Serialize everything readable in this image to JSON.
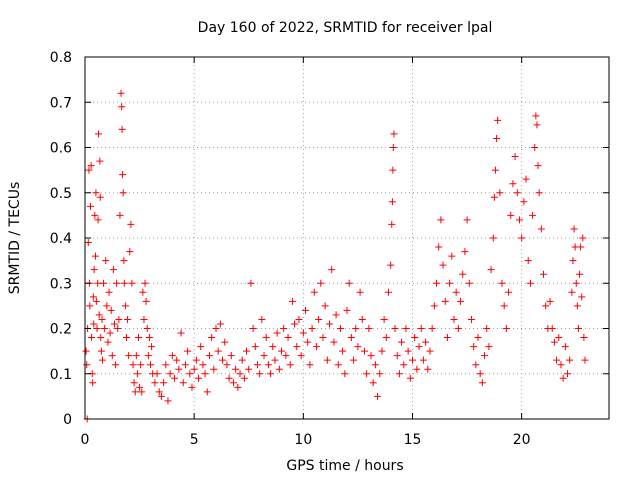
{
  "chart_data": {
    "type": "scatter",
    "title": "Day 160 of 2022, SRMTID for receiver lpal",
    "xlabel": "GPS time / hours",
    "ylabel": "SRMTID / TECUs",
    "xlim": [
      0,
      24
    ],
    "ylim": [
      0,
      0.8
    ],
    "xticks": [
      0,
      5,
      10,
      15,
      20
    ],
    "yticks": [
      0,
      0.1,
      0.2,
      0.3,
      0.4,
      0.5,
      0.6,
      0.7,
      0.8
    ],
    "xtick_labels": [
      "0",
      "5",
      "10",
      "15",
      "20"
    ],
    "ytick_labels": [
      "0",
      "0.1",
      "0.2",
      "0.3",
      "0.4",
      "0.5",
      "0.6",
      "0.7",
      "0.8"
    ],
    "grid": true,
    "marker": "+",
    "color": "#ff0000",
    "series": [
      {
        "name": "SRMTID",
        "points": [
          [
            0.05,
            0.15
          ],
          [
            0.08,
            0.12
          ],
          [
            0.1,
            0.0
          ],
          [
            0.12,
            0.2
          ],
          [
            0.15,
            0.39
          ],
          [
            0.18,
            0.55
          ],
          [
            0.2,
            0.3
          ],
          [
            0.22,
            0.25
          ],
          [
            0.25,
            0.47
          ],
          [
            0.28,
            0.56
          ],
          [
            0.3,
            0.18
          ],
          [
            0.33,
            0.1
          ],
          [
            0.35,
            0.08
          ],
          [
            0.38,
            0.27
          ],
          [
            0.4,
            0.21
          ],
          [
            0.42,
            0.33
          ],
          [
            0.45,
            0.45
          ],
          [
            0.48,
            0.36
          ],
          [
            0.5,
            0.5
          ],
          [
            0.52,
            0.26
          ],
          [
            0.55,
            0.2
          ],
          [
            0.58,
            0.3
          ],
          [
            0.6,
            0.44
          ],
          [
            0.62,
            0.63
          ],
          [
            0.65,
            0.23
          ],
          [
            0.68,
            0.57
          ],
          [
            0.7,
            0.49
          ],
          [
            0.72,
            0.18
          ],
          [
            0.75,
            0.15
          ],
          [
            0.78,
            0.22
          ],
          [
            0.8,
            0.13
          ],
          [
            0.85,
            0.3
          ],
          [
            0.9,
            0.2
          ],
          [
            0.95,
            0.35
          ],
          [
            1.0,
            0.25
          ],
          [
            1.05,
            0.17
          ],
          [
            1.1,
            0.28
          ],
          [
            1.15,
            0.19
          ],
          [
            1.2,
            0.24
          ],
          [
            1.25,
            0.14
          ],
          [
            1.3,
            0.33
          ],
          [
            1.35,
            0.21
          ],
          [
            1.4,
            0.12
          ],
          [
            1.45,
            0.3
          ],
          [
            1.5,
            0.2
          ],
          [
            1.55,
            0.22
          ],
          [
            1.6,
            0.45
          ],
          [
            1.65,
            0.72
          ],
          [
            1.68,
            0.69
          ],
          [
            1.7,
            0.64
          ],
          [
            1.72,
            0.54
          ],
          [
            1.75,
            0.5
          ],
          [
            1.78,
            0.35
          ],
          [
            1.8,
            0.3
          ],
          [
            1.85,
            0.25
          ],
          [
            1.9,
            0.18
          ],
          [
            1.95,
            0.22
          ],
          [
            2.0,
            0.14
          ],
          [
            2.05,
            0.37
          ],
          [
            2.1,
            0.43
          ],
          [
            2.15,
            0.3
          ],
          [
            2.2,
            0.12
          ],
          [
            2.25,
            0.08
          ],
          [
            2.3,
            0.06
          ],
          [
            2.35,
            0.14
          ],
          [
            2.4,
            0.1
          ],
          [
            2.45,
            0.18
          ],
          [
            2.5,
            0.07
          ],
          [
            2.55,
            0.12
          ],
          [
            2.6,
            0.06
          ],
          [
            2.65,
            0.28
          ],
          [
            2.7,
            0.22
          ],
          [
            2.75,
            0.3
          ],
          [
            2.8,
            0.26
          ],
          [
            2.85,
            0.2
          ],
          [
            2.9,
            0.14
          ],
          [
            2.95,
            0.18
          ],
          [
            3.0,
            0.12
          ],
          [
            3.05,
            0.16
          ],
          [
            3.1,
            0.1
          ],
          [
            3.2,
            0.08
          ],
          [
            3.3,
            0.1
          ],
          [
            3.4,
            0.06
          ],
          [
            3.5,
            0.05
          ],
          [
            3.6,
            0.08
          ],
          [
            3.7,
            0.12
          ],
          [
            3.8,
            0.04
          ],
          [
            3.9,
            0.1
          ],
          [
            4.0,
            0.14
          ],
          [
            4.1,
            0.09
          ],
          [
            4.2,
            0.13
          ],
          [
            4.3,
            0.11
          ],
          [
            4.4,
            0.19
          ],
          [
            4.5,
            0.08
          ],
          [
            4.6,
            0.12
          ],
          [
            4.7,
            0.15
          ],
          [
            4.8,
            0.1
          ],
          [
            4.9,
            0.07
          ],
          [
            5.0,
            0.11
          ],
          [
            5.1,
            0.13
          ],
          [
            5.2,
            0.09
          ],
          [
            5.3,
            0.16
          ],
          [
            5.4,
            0.12
          ],
          [
            5.5,
            0.1
          ],
          [
            5.6,
            0.06
          ],
          [
            5.7,
            0.14
          ],
          [
            5.8,
            0.18
          ],
          [
            5.9,
            0.11
          ],
          [
            6.0,
            0.2
          ],
          [
            6.1,
            0.15
          ],
          [
            6.2,
            0.21
          ],
          [
            6.3,
            0.13
          ],
          [
            6.4,
            0.17
          ],
          [
            6.5,
            0.12
          ],
          [
            6.6,
            0.09
          ],
          [
            6.7,
            0.14
          ],
          [
            6.8,
            0.08
          ],
          [
            6.9,
            0.11
          ],
          [
            7.0,
            0.07
          ],
          [
            7.1,
            0.1
          ],
          [
            7.2,
            0.13
          ],
          [
            7.3,
            0.09
          ],
          [
            7.4,
            0.15
          ],
          [
            7.5,
            0.11
          ],
          [
            7.6,
            0.3
          ],
          [
            7.7,
            0.2
          ],
          [
            7.8,
            0.16
          ],
          [
            7.9,
            0.12
          ],
          [
            8.0,
            0.1
          ],
          [
            8.1,
            0.22
          ],
          [
            8.2,
            0.14
          ],
          [
            8.3,
            0.18
          ],
          [
            8.4,
            0.12
          ],
          [
            8.5,
            0.1
          ],
          [
            8.6,
            0.16
          ],
          [
            8.7,
            0.13
          ],
          [
            8.8,
            0.19
          ],
          [
            8.9,
            0.11
          ],
          [
            9.0,
            0.15
          ],
          [
            9.1,
            0.2
          ],
          [
            9.2,
            0.14
          ],
          [
            9.3,
            0.18
          ],
          [
            9.4,
            0.12
          ],
          [
            9.5,
            0.26
          ],
          [
            9.6,
            0.21
          ],
          [
            9.7,
            0.16
          ],
          [
            9.8,
            0.22
          ],
          [
            9.9,
            0.14
          ],
          [
            10.0,
            0.19
          ],
          [
            10.1,
            0.24
          ],
          [
            10.2,
            0.17
          ],
          [
            10.3,
            0.12
          ],
          [
            10.4,
            0.2
          ],
          [
            10.5,
            0.28
          ],
          [
            10.6,
            0.16
          ],
          [
            10.7,
            0.22
          ],
          [
            10.8,
            0.3
          ],
          [
            10.9,
            0.18
          ],
          [
            11.0,
            0.25
          ],
          [
            11.1,
            0.13
          ],
          [
            11.2,
            0.21
          ],
          [
            11.3,
            0.33
          ],
          [
            11.4,
            0.17
          ],
          [
            11.5,
            0.23
          ],
          [
            11.6,
            0.12
          ],
          [
            11.7,
            0.2
          ],
          [
            11.8,
            0.15
          ],
          [
            11.9,
            0.1
          ],
          [
            12.0,
            0.24
          ],
          [
            12.1,
            0.3
          ],
          [
            12.2,
            0.18
          ],
          [
            12.3,
            0.13
          ],
          [
            12.4,
            0.2
          ],
          [
            12.5,
            0.16
          ],
          [
            12.6,
            0.28
          ],
          [
            12.7,
            0.22
          ],
          [
            12.8,
            0.15
          ],
          [
            12.9,
            0.1
          ],
          [
            13.0,
            0.2
          ],
          [
            13.1,
            0.14
          ],
          [
            13.2,
            0.08
          ],
          [
            13.3,
            0.12
          ],
          [
            13.4,
            0.05
          ],
          [
            13.5,
            0.1
          ],
          [
            13.6,
            0.15
          ],
          [
            13.7,
            0.22
          ],
          [
            13.8,
            0.18
          ],
          [
            13.9,
            0.28
          ],
          [
            14.0,
            0.34
          ],
          [
            14.05,
            0.43
          ],
          [
            14.08,
            0.48
          ],
          [
            14.1,
            0.55
          ],
          [
            14.12,
            0.6
          ],
          [
            14.15,
            0.63
          ],
          [
            14.2,
            0.2
          ],
          [
            14.3,
            0.14
          ],
          [
            14.4,
            0.1
          ],
          [
            14.5,
            0.17
          ],
          [
            14.6,
            0.12
          ],
          [
            14.7,
            0.2
          ],
          [
            14.8,
            0.15
          ],
          [
            14.9,
            0.09
          ],
          [
            15.0,
            0.13
          ],
          [
            15.1,
            0.18
          ],
          [
            15.2,
            0.11
          ],
          [
            15.3,
            0.16
          ],
          [
            15.4,
            0.2
          ],
          [
            15.5,
            0.13
          ],
          [
            15.6,
            0.17
          ],
          [
            15.7,
            0.11
          ],
          [
            15.8,
            0.15
          ],
          [
            15.9,
            0.2
          ],
          [
            16.0,
            0.25
          ],
          [
            16.1,
            0.3
          ],
          [
            16.2,
            0.38
          ],
          [
            16.3,
            0.44
          ],
          [
            16.4,
            0.34
          ],
          [
            16.5,
            0.26
          ],
          [
            16.6,
            0.18
          ],
          [
            16.7,
            0.3
          ],
          [
            16.8,
            0.36
          ],
          [
            16.9,
            0.22
          ],
          [
            17.0,
            0.28
          ],
          [
            17.1,
            0.2
          ],
          [
            17.2,
            0.26
          ],
          [
            17.3,
            0.32
          ],
          [
            17.4,
            0.37
          ],
          [
            17.5,
            0.44
          ],
          [
            17.6,
            0.3
          ],
          [
            17.7,
            0.22
          ],
          [
            17.8,
            0.16
          ],
          [
            17.9,
            0.12
          ],
          [
            18.0,
            0.18
          ],
          [
            18.1,
            0.1
          ],
          [
            18.2,
            0.08
          ],
          [
            18.3,
            0.14
          ],
          [
            18.4,
            0.2
          ],
          [
            18.5,
            0.16
          ],
          [
            18.6,
            0.33
          ],
          [
            18.7,
            0.4
          ],
          [
            18.75,
            0.49
          ],
          [
            18.8,
            0.55
          ],
          [
            18.85,
            0.62
          ],
          [
            18.9,
            0.66
          ],
          [
            19.0,
            0.5
          ],
          [
            19.1,
            0.3
          ],
          [
            19.2,
            0.25
          ],
          [
            19.3,
            0.2
          ],
          [
            19.4,
            0.28
          ],
          [
            19.5,
            0.45
          ],
          [
            19.6,
            0.52
          ],
          [
            19.7,
            0.58
          ],
          [
            19.8,
            0.5
          ],
          [
            19.9,
            0.44
          ],
          [
            20.0,
            0.4
          ],
          [
            20.1,
            0.48
          ],
          [
            20.2,
            0.53
          ],
          [
            20.3,
            0.35
          ],
          [
            20.4,
            0.3
          ],
          [
            20.5,
            0.45
          ],
          [
            20.6,
            0.6
          ],
          [
            20.65,
            0.67
          ],
          [
            20.7,
            0.65
          ],
          [
            20.75,
            0.56
          ],
          [
            20.8,
            0.5
          ],
          [
            20.9,
            0.42
          ],
          [
            21.0,
            0.32
          ],
          [
            21.1,
            0.25
          ],
          [
            21.2,
            0.2
          ],
          [
            21.3,
            0.26
          ],
          [
            21.4,
            0.2
          ],
          [
            21.5,
            0.17
          ],
          [
            21.6,
            0.13
          ],
          [
            21.7,
            0.18
          ],
          [
            21.8,
            0.12
          ],
          [
            21.9,
            0.09
          ],
          [
            22.0,
            0.16
          ],
          [
            22.1,
            0.1
          ],
          [
            22.2,
            0.13
          ],
          [
            22.3,
            0.28
          ],
          [
            22.35,
            0.35
          ],
          [
            22.4,
            0.42
          ],
          [
            22.45,
            0.38
          ],
          [
            22.5,
            0.3
          ],
          [
            22.55,
            0.25
          ],
          [
            22.6,
            0.2
          ],
          [
            22.65,
            0.32
          ],
          [
            22.7,
            0.38
          ],
          [
            22.75,
            0.27
          ],
          [
            22.8,
            0.4
          ],
          [
            22.85,
            0.18
          ],
          [
            22.9,
            0.13
          ]
        ]
      }
    ]
  }
}
